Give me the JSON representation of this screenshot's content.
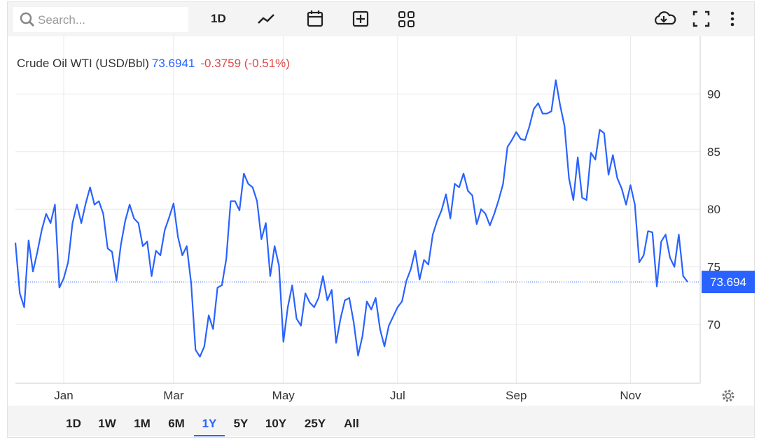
{
  "toolbar": {
    "search_placeholder": "Search...",
    "interval": "1D"
  },
  "chart_data": {
    "type": "line",
    "last_price": "73.6941",
    "change": "-0.3759 (-0.51%)",
    "price_tag": "73.694",
    "categories": [
      null,
      null,
      null,
      null,
      null,
      null,
      null,
      null,
      null,
      null,
      null,
      "Jan",
      null,
      null,
      null,
      null,
      null,
      null,
      null,
      null,
      null,
      null,
      null,
      null,
      null,
      null,
      null,
      null,
      null,
      null,
      null,
      null,
      null,
      null,
      null,
      null,
      "Mar",
      null,
      null,
      null,
      null,
      null,
      null,
      null,
      null,
      null,
      null,
      null,
      null,
      null,
      null,
      null,
      null,
      null,
      null,
      null,
      null,
      null,
      null,
      null,
      null,
      "May",
      null,
      null,
      null,
      null,
      null,
      null,
      null,
      null,
      null,
      null,
      null,
      null,
      null,
      null,
      null,
      null,
      null,
      null,
      null,
      null,
      null,
      null,
      null,
      null,
      null,
      "Jul",
      null,
      null,
      null,
      null,
      null,
      null,
      null,
      null,
      null,
      null,
      null,
      null,
      null,
      null,
      null,
      null,
      null,
      null,
      null,
      null,
      null,
      null,
      null,
      null,
      null,
      null,
      "Sep",
      null,
      null,
      null,
      null,
      null,
      null,
      null,
      null,
      null,
      null,
      null,
      null,
      null,
      null,
      null,
      null,
      null,
      null,
      null,
      null,
      null,
      null,
      null,
      null,
      null,
      "Nov",
      null,
      null,
      null,
      null,
      null,
      null,
      null,
      null,
      null,
      null,
      null,
      null,
      null
    ],
    "series": [
      {
        "name": "Crude Oil WTI (USD/Bbl)",
        "color": "#2962ff",
        "values": [
          77.1,
          72.7,
          71.5,
          77.3,
          74.6,
          76.3,
          78.2,
          79.6,
          78.8,
          80.4,
          73.2,
          74.0,
          75.4,
          78.8,
          80.4,
          78.8,
          80.5,
          81.9,
          80.4,
          80.7,
          79.6,
          76.6,
          76.3,
          73.8,
          76.9,
          79.0,
          80.4,
          79.2,
          78.8,
          76.8,
          77.2,
          74.2,
          76.4,
          76.0,
          78.2,
          79.3,
          80.5,
          77.6,
          76.0,
          76.8,
          73.6,
          67.8,
          67.2,
          68.1,
          70.8,
          69.6,
          73.2,
          73.4,
          75.7,
          80.7,
          80.7,
          79.9,
          83.1,
          82.2,
          81.9,
          80.7,
          77.4,
          78.8,
          74.2,
          76.8,
          75.1,
          68.5,
          71.5,
          73.4,
          70.5,
          69.9,
          72.7,
          71.9,
          71.5,
          72.3,
          74.2,
          72.1,
          73.0,
          68.4,
          70.5,
          72.1,
          72.3,
          70.2,
          67.3,
          69.0,
          72.0,
          71.3,
          72.3,
          69.6,
          68.1,
          69.9,
          70.7,
          71.5,
          72.0,
          73.8,
          74.8,
          76.4,
          73.9,
          75.6,
          75.2,
          77.8,
          79.0,
          79.9,
          81.3,
          79.2,
          82.2,
          81.9,
          83.1,
          81.6,
          81.2,
          78.7,
          80.0,
          79.6,
          78.6,
          79.6,
          80.8,
          82.2,
          85.4,
          86.0,
          86.7,
          86.1,
          86.0,
          87.2,
          88.7,
          89.2,
          88.3,
          88.3,
          88.5,
          91.2,
          89.0,
          87.2,
          82.7,
          80.8,
          84.5,
          81.0,
          80.8,
          84.9,
          84.3,
          86.9,
          86.6,
          83.0,
          84.7,
          82.7,
          81.8,
          80.4,
          82.1,
          80.4,
          75.4,
          76.0,
          78.1,
          78.0,
          73.3,
          77.2,
          77.8,
          75.8,
          75.0,
          77.8,
          74.2,
          73.694
        ]
      }
    ],
    "ylim": [
      64.9,
      95
    ],
    "yticks": [
      70,
      75,
      80,
      85,
      90
    ],
    "grid": true
  },
  "range_selector": {
    "options": [
      "1D",
      "1W",
      "1M",
      "6M",
      "1Y",
      "5Y",
      "10Y",
      "25Y",
      "All"
    ],
    "selected": 4
  }
}
